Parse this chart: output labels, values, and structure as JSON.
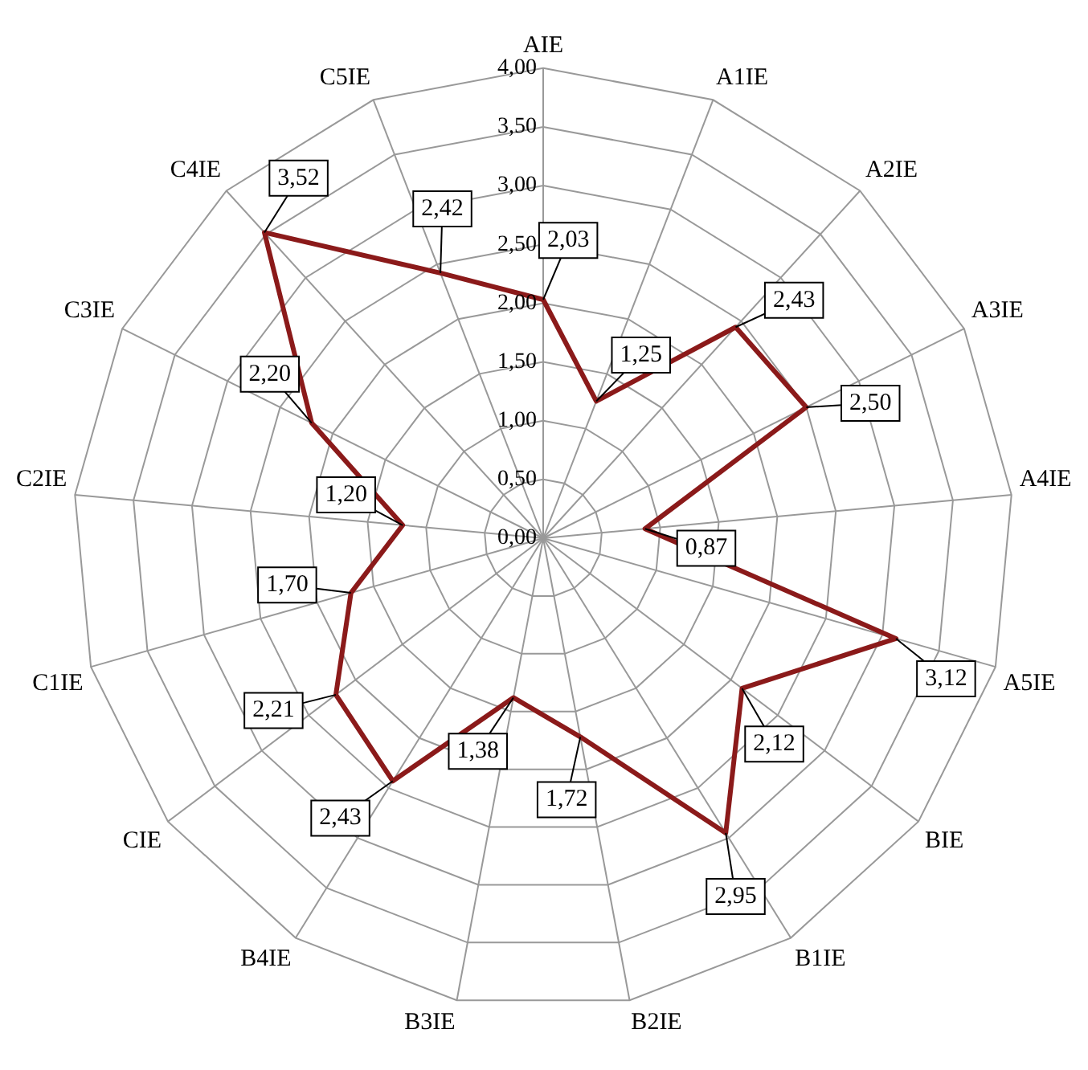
{
  "chart_data": {
    "type": "radar",
    "categories": [
      "AIE",
      "A1IE",
      "A2IE",
      "A3IE",
      "A4IE",
      "A5IE",
      "BIE",
      "B1IE",
      "B2IE",
      "B3IE",
      "B4IE",
      "CIE",
      "C1IE",
      "C2IE",
      "C3IE",
      "C4IE",
      "C5IE"
    ],
    "series": [
      {
        "color": "#8b1a1a",
        "values": [
          2.03,
          1.25,
          2.43,
          2.5,
          0.87,
          3.12,
          2.12,
          2.95,
          1.72,
          1.38,
          2.43,
          2.21,
          1.7,
          1.2,
          2.2,
          3.52,
          2.42
        ],
        "value_labels": [
          "2,03",
          "1,25",
          "2,43",
          "2,50",
          "0,87",
          "3,12",
          "2,12",
          "2,95",
          "1,72",
          "1,38",
          "2,43",
          "2,21",
          "1,70",
          "1,20",
          "2,20",
          "3,52",
          "2,42"
        ]
      }
    ],
    "ylim": [
      0,
      4
    ],
    "yticks": [
      {
        "value": 0,
        "label": "0,00"
      },
      {
        "value": 0.5,
        "label": "0,50"
      },
      {
        "value": 1,
        "label": "1,00"
      },
      {
        "value": 1.5,
        "label": "1,50"
      },
      {
        "value": 2,
        "label": "2,00"
      },
      {
        "value": 2.5,
        "label": "2,50"
      },
      {
        "value": 3,
        "label": "3,00"
      },
      {
        "value": 3.5,
        "label": "3,50"
      },
      {
        "value": 4,
        "label": "4,00"
      }
    ],
    "grid": true,
    "legend": false,
    "marker": "none"
  }
}
